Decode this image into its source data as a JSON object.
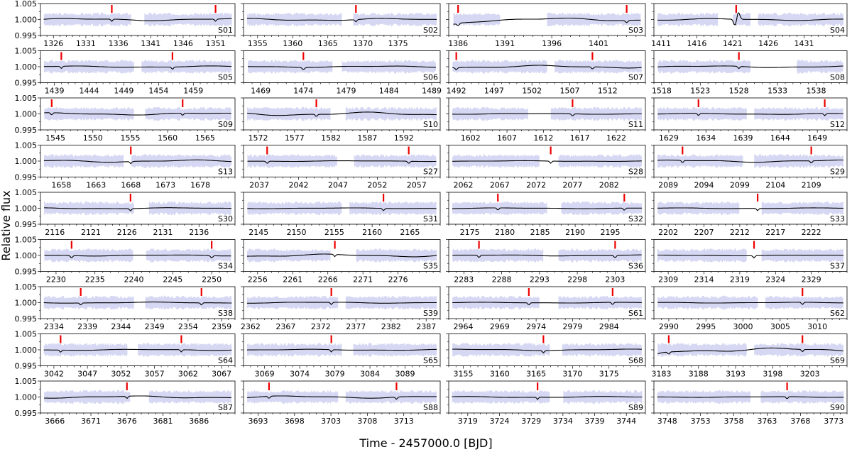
{
  "figure": {
    "xlabel": "Time - 2457000.0 [BJD]",
    "ylabel": "Relative flux"
  },
  "colors": {
    "raw_flux": "#d6d8f3",
    "model": "#000000",
    "transit_marker": "#ee0000",
    "frame": "#000000"
  },
  "chart_data": {
    "type": "line",
    "layout": "grid of light-curve panels, 10 rows x 4 columns",
    "ylim": [
      0.995,
      1.005
    ],
    "yticks": [
      0.995,
      1.0,
      1.005
    ],
    "ytick_labels": [
      "0.995",
      "1.000",
      "1.005"
    ],
    "series_drawn": [
      "raw flux band (light lavender)",
      "binned/model flux (black line)",
      "transit epochs (red markers)"
    ],
    "panels": [
      {
        "label": "S01",
        "xlim": [
          1324,
          1354
        ],
        "xticks": [
          1326,
          1331,
          1336,
          1341,
          1346,
          1351
        ],
        "gaps": [
          [
            1338,
            1340
          ]
        ],
        "transits": [
          1335,
          1351
        ],
        "wavy": 0.3
      },
      {
        "label": "S02",
        "xlim": [
          1353,
          1381
        ],
        "xticks": [
          1355,
          1360,
          1365,
          1370,
          1375
        ],
        "gaps": [
          [
            1367,
            1368.5
          ]
        ],
        "transits": [
          1369
        ],
        "wavy": 0.3
      },
      {
        "label": "S03",
        "xlim": [
          1385,
          1406
        ],
        "xticks": [
          1386,
          1391,
          1396,
          1401
        ],
        "gaps": [
          [
            1390.5,
            1395.5
          ]
        ],
        "transits": [
          1386,
          1404
        ],
        "wavy": 0.4,
        "dip_start": true
      },
      {
        "label": "S04",
        "xlim": [
          1410,
          1437
        ],
        "xticks": [
          1411,
          1416,
          1421,
          1426,
          1431
        ],
        "gaps": [
          [
            1419,
            1421
          ],
          [
            1423.5,
            1424.5
          ]
        ],
        "transits": [
          1421.5
        ],
        "wavy": 0.25,
        "spike": 1421.5
      },
      {
        "label": "S05",
        "xlim": [
          1437,
          1465
        ],
        "xticks": [
          1439,
          1444,
          1449,
          1454,
          1459
        ],
        "gaps": [
          [
            1450.5,
            1451.5
          ]
        ],
        "transits": [
          1440,
          1456
        ],
        "wavy": 0.2
      },
      {
        "label": "S06",
        "xlim": [
          1467,
          1490
        ],
        "xticks": [
          1469,
          1474,
          1479,
          1484,
          1489
        ],
        "gaps": [
          [
            1477.5,
            1478.5
          ]
        ],
        "transits": [
          1474
        ],
        "wavy": 0.2
      },
      {
        "label": "S07",
        "xlim": [
          1491,
          1517
        ],
        "xticks": [
          1492,
          1497,
          1502,
          1507,
          1512
        ],
        "gaps": [
          [
            1504,
            1505
          ]
        ],
        "transits": [
          1492,
          1510
        ],
        "wavy": 0.35
      },
      {
        "label": "S08",
        "xlim": [
          1517,
          1542
        ],
        "xticks": [
          1518,
          1523,
          1528,
          1533,
          1538
        ],
        "gaps": [
          [
            1529.5,
            1535.5
          ]
        ],
        "transits": [
          1528
        ],
        "wavy": 0.25
      },
      {
        "label": "S09",
        "xlim": [
          1543,
          1569
        ],
        "xticks": [
          1545,
          1550,
          1555,
          1560,
          1565
        ],
        "gaps": [
          [
            1555.5,
            1557
          ]
        ],
        "transits": [
          1544.5,
          1562
        ],
        "wavy": 0.3
      },
      {
        "label": "S10",
        "xlim": [
          1570,
          1597
        ],
        "xticks": [
          1572,
          1577,
          1582,
          1587,
          1592
        ],
        "gaps": [
          [
            1582,
            1584
          ]
        ],
        "transits": [
          1580
        ],
        "wavy": 0.45
      },
      {
        "label": "S11",
        "xlim": [
          1599,
          1626
        ],
        "xticks": [
          1602,
          1607,
          1612,
          1617,
          1622
        ],
        "gaps": [
          [
            1610,
            1613
          ]
        ],
        "transits": [
          1616
        ],
        "wavy": 0.1
      },
      {
        "label": "S12",
        "xlim": [
          1627,
          1653
        ],
        "xticks": [
          1629,
          1634,
          1639,
          1644,
          1649
        ],
        "gaps": [
          [
            1639.5,
            1640.5
          ]
        ],
        "transits": [
          1633,
          1650
        ],
        "wavy": 0.15
      },
      {
        "label": "S13",
        "xlim": [
          1655,
          1683
        ],
        "xticks": [
          1658,
          1663,
          1668,
          1673,
          1678
        ],
        "gaps": [
          [
            1667,
            1668
          ]
        ],
        "transits": [
          1668
        ],
        "wavy": 0.3
      },
      {
        "label": "S27",
        "xlim": [
          2035,
          2060
        ],
        "xticks": [
          2037,
          2042,
          2047,
          2052,
          2057
        ],
        "gaps": [
          [
            2047,
            2049
          ]
        ],
        "transits": [
          2038,
          2056
        ],
        "wavy": 0.1
      },
      {
        "label": "S28",
        "xlim": [
          2060,
          2087
        ],
        "xticks": [
          2062,
          2067,
          2072,
          2077,
          2082
        ],
        "gaps": [
          [
            2072.5,
            2075
          ]
        ],
        "transits": [
          2074
        ],
        "wavy": 0.1
      },
      {
        "label": "S29",
        "xlim": [
          2087,
          2114
        ],
        "xticks": [
          2089,
          2094,
          2099,
          2104,
          2109
        ],
        "gaps": [
          [
            2099.5,
            2101
          ]
        ],
        "transits": [
          2091,
          2109
        ],
        "wavy": 0.3
      },
      {
        "label": "S30",
        "xlim": [
          2114,
          2141
        ],
        "xticks": [
          2116,
          2121,
          2126,
          2131,
          2136
        ],
        "gaps": [
          [
            2127,
            2129
          ]
        ],
        "transits": [
          2126.5
        ],
        "wavy": 0.15
      },
      {
        "label": "S31",
        "xlim": [
          2143,
          2169
        ],
        "xticks": [
          2145,
          2150,
          2155,
          2160,
          2165
        ],
        "gaps": [
          [
            2156,
            2157
          ]
        ],
        "transits": [
          2161.5
        ],
        "wavy": 0.1
      },
      {
        "label": "S32",
        "xlim": [
          2172,
          2200
        ],
        "xticks": [
          2175,
          2180,
          2185,
          2190,
          2195
        ],
        "gaps": [
          [
            2186,
            2188
          ]
        ],
        "transits": [
          2179,
          2197
        ],
        "wavy": 0.1
      },
      {
        "label": "S33",
        "xlim": [
          2200,
          2227
        ],
        "xticks": [
          2202,
          2207,
          2212,
          2217,
          2222
        ],
        "gaps": [
          [
            2212,
            2215
          ]
        ],
        "transits": [
          2214.5
        ],
        "wavy": 0.1
      },
      {
        "label": "S34",
        "xlim": [
          2228,
          2253
        ],
        "xticks": [
          2230,
          2235,
          2240,
          2245,
          2250
        ],
        "gaps": [
          [
            2240,
            2241.5
          ]
        ],
        "transits": [
          2232,
          2250
        ],
        "wavy": 0.15
      },
      {
        "label": "S35",
        "xlim": [
          2254,
          2282
        ],
        "xticks": [
          2256,
          2261,
          2266,
          2271,
          2276
        ],
        "gaps": [
          [
            2266.5,
            2270
          ]
        ],
        "transits": [
          2267
        ],
        "wavy": 0.35
      },
      {
        "label": "S36",
        "xlim": [
          2281,
          2307
        ],
        "xticks": [
          2283,
          2288,
          2293,
          2298,
          2303
        ],
        "gaps": [
          [
            2293.5,
            2295.5
          ]
        ],
        "transits": [
          2285,
          2303
        ],
        "wavy": 0.15
      },
      {
        "label": "S37",
        "xlim": [
          2307,
          2334
        ],
        "xticks": [
          2309,
          2314,
          2319,
          2324,
          2329
        ],
        "gaps": [
          [
            2320,
            2322
          ]
        ],
        "transits": [
          2321
        ],
        "wavy": 0.1
      },
      {
        "label": "S38",
        "xlim": [
          2332,
          2361
        ],
        "xticks": [
          2334,
          2339,
          2344,
          2349,
          2354,
          2359
        ],
        "gaps": [
          [
            2346,
            2347.5
          ]
        ],
        "transits": [
          2338,
          2356
        ],
        "wavy": 0.15
      },
      {
        "label": "S39",
        "xlim": [
          2361,
          2389
        ],
        "xticks": [
          2362,
          2367,
          2372,
          2377,
          2382,
          2387
        ],
        "gaps": [
          [
            2374.5,
            2375.5
          ]
        ],
        "transits": [
          2373.5
        ],
        "wavy": 0.15
      },
      {
        "label": "S61",
        "xlim": [
          2962,
          2989
        ],
        "xticks": [
          2964,
          2969,
          2974,
          2979,
          2984
        ],
        "gaps": [
          [
            2974.5,
            2977
          ]
        ],
        "transits": [
          2973,
          2984.5
        ],
        "wavy": 0.1
      },
      {
        "label": "S62",
        "xlim": [
          2988,
          3014
        ],
        "xticks": [
          2990,
          2995,
          3000,
          3005,
          3010
        ],
        "gaps": [
          [
            3002,
            3003
          ]
        ],
        "transits": [
          3008
        ],
        "wavy": 0.1
      },
      {
        "label": "S64",
        "xlim": [
          3040,
          3069
        ],
        "xticks": [
          3042,
          3047,
          3052,
          3057,
          3062,
          3067
        ],
        "gaps": [
          [
            3053,
            3054.5
          ]
        ],
        "transits": [
          3043,
          3061
        ],
        "wavy": 0.15
      },
      {
        "label": "S65",
        "xlim": [
          3066,
          3094
        ],
        "xticks": [
          3069,
          3074,
          3079,
          3084,
          3089
        ],
        "gaps": [
          [
            3080,
            3081.5
          ]
        ],
        "transits": [
          3078.5
        ],
        "wavy": 0.15
      },
      {
        "label": "S68",
        "xlim": [
          3153,
          3180
        ],
        "xticks": [
          3155,
          3160,
          3165,
          3170,
          3175
        ],
        "gaps": [
          [
            3167,
            3168.5
          ]
        ],
        "transits": [
          3166
        ],
        "wavy": 0.2
      },
      {
        "label": "S69",
        "xlim": [
          3182,
          3208
        ],
        "xticks": [
          3183,
          3188,
          3193,
          3198,
          3203
        ],
        "gaps": [
          [
            3194.5,
            3195.5
          ]
        ],
        "transits": [
          3184,
          3202
        ],
        "wavy": 0.5,
        "dip_start": true
      },
      {
        "label": "S87",
        "xlim": [
          3664,
          3691
        ],
        "xticks": [
          3666,
          3671,
          3676,
          3681,
          3686
        ],
        "gaps": [
          [
            3676.5,
            3679
          ]
        ],
        "transits": [
          3676
        ],
        "wavy": 0.3
      },
      {
        "label": "S88",
        "xlim": [
          3691,
          3718
        ],
        "xticks": [
          3693,
          3698,
          3703,
          3708,
          3713
        ],
        "gaps": [
          [
            3704,
            3705
          ]
        ],
        "transits": [
          3694.5,
          3712
        ],
        "wavy": 0.3
      },
      {
        "label": "S89",
        "xlim": [
          3716,
          3747
        ],
        "xticks": [
          3719,
          3724,
          3729,
          3734,
          3739,
          3744
        ],
        "gaps": [
          [
            3732,
            3734
          ]
        ],
        "transits": [
          3730
        ],
        "wavy": 0.15
      },
      {
        "label": "S90",
        "xlim": [
          3746,
          3775
        ],
        "xticks": [
          3748,
          3753,
          3758,
          3763,
          3768,
          3773
        ],
        "gaps": [
          [
            3760.5,
            3762
          ]
        ],
        "transits": [
          3766
        ],
        "wavy": 0.1
      }
    ]
  }
}
